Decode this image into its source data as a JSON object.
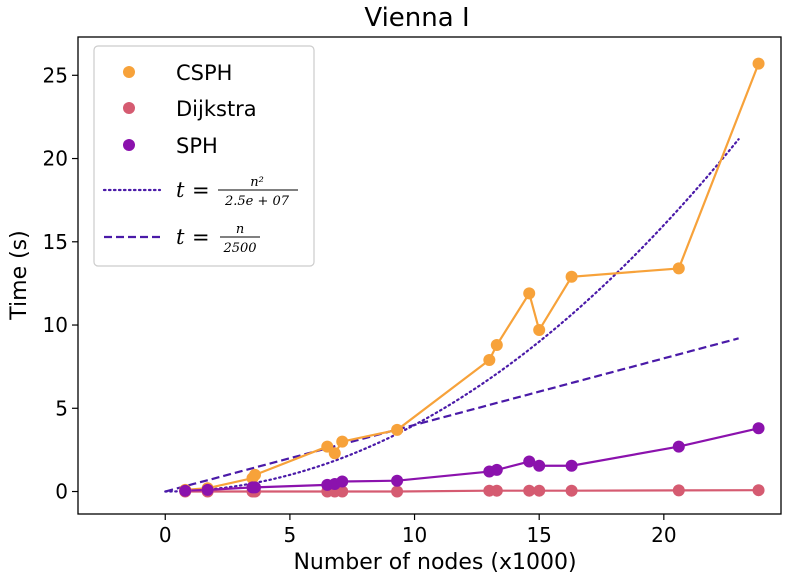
{
  "chart_data": {
    "type": "scatter",
    "title": "Vienna I",
    "xlabel": "Number of nodes (x1000)",
    "ylabel": "Time (s)",
    "xlim": [
      -3.5,
      24.7
    ],
    "ylim": [
      -1.35,
      27.3
    ],
    "xticks": [
      0,
      5,
      10,
      15,
      20
    ],
    "yticks": [
      0,
      5,
      10,
      15,
      20,
      25
    ],
    "xtick_labels": [
      "0",
      "5",
      "10",
      "15",
      "20"
    ],
    "ytick_labels": [
      "0",
      "5",
      "10",
      "15",
      "20",
      "25"
    ],
    "legend_position": "top-left",
    "series": [
      {
        "name": "CSPH",
        "color": "#f7a23a",
        "marker": "circle",
        "x": [
          0.8,
          1.7,
          3.5,
          3.6,
          6.5,
          6.8,
          7.1,
          9.3,
          13.0,
          13.3,
          14.6,
          15.0,
          16.3,
          20.6,
          23.8
        ],
        "y": [
          0.1,
          0.2,
          0.8,
          1.0,
          2.7,
          2.3,
          3.0,
          3.7,
          7.9,
          8.8,
          11.9,
          9.7,
          12.9,
          13.4,
          25.7
        ]
      },
      {
        "name": "Dijkstra",
        "color": "#d55b71",
        "marker": "circle",
        "x": [
          0.8,
          1.7,
          3.5,
          3.6,
          6.5,
          6.8,
          7.1,
          9.3,
          13.0,
          13.3,
          14.6,
          15.0,
          16.3,
          20.6,
          23.8
        ],
        "y": [
          0.0,
          0.0,
          0.0,
          0.0,
          0.0,
          0.0,
          0.0,
          0.0,
          0.05,
          0.05,
          0.05,
          0.05,
          0.05,
          0.07,
          0.08
        ]
      },
      {
        "name": "SPH",
        "color": "#8b12ad",
        "marker": "circle",
        "x": [
          0.8,
          1.7,
          3.5,
          3.6,
          6.5,
          6.8,
          7.1,
          9.3,
          13.0,
          13.3,
          14.6,
          15.0,
          16.3,
          20.6,
          23.8
        ],
        "y": [
          0.05,
          0.1,
          0.25,
          0.25,
          0.4,
          0.45,
          0.6,
          0.65,
          1.2,
          1.3,
          1.8,
          1.55,
          1.55,
          2.7,
          3.8
        ]
      }
    ],
    "reference_lines": [
      {
        "name": "t = n^2 / 2.5e+07",
        "legend_label": {
          "lhs": "t",
          "eq": "=",
          "num": "n²",
          "den": "2.5e + 07"
        },
        "style": "dotted",
        "color": "#4a1aa8",
        "formula": "quadratic",
        "divisor": 25000000,
        "x_range": [
          0,
          23
        ]
      },
      {
        "name": "t = n / 2500",
        "legend_label": {
          "lhs": "t",
          "eq": "=",
          "num": "n",
          "den": "2500"
        },
        "style": "dashed",
        "color": "#4a1aa8",
        "formula": "linear",
        "divisor": 2500,
        "x_range": [
          0,
          23
        ]
      }
    ]
  }
}
